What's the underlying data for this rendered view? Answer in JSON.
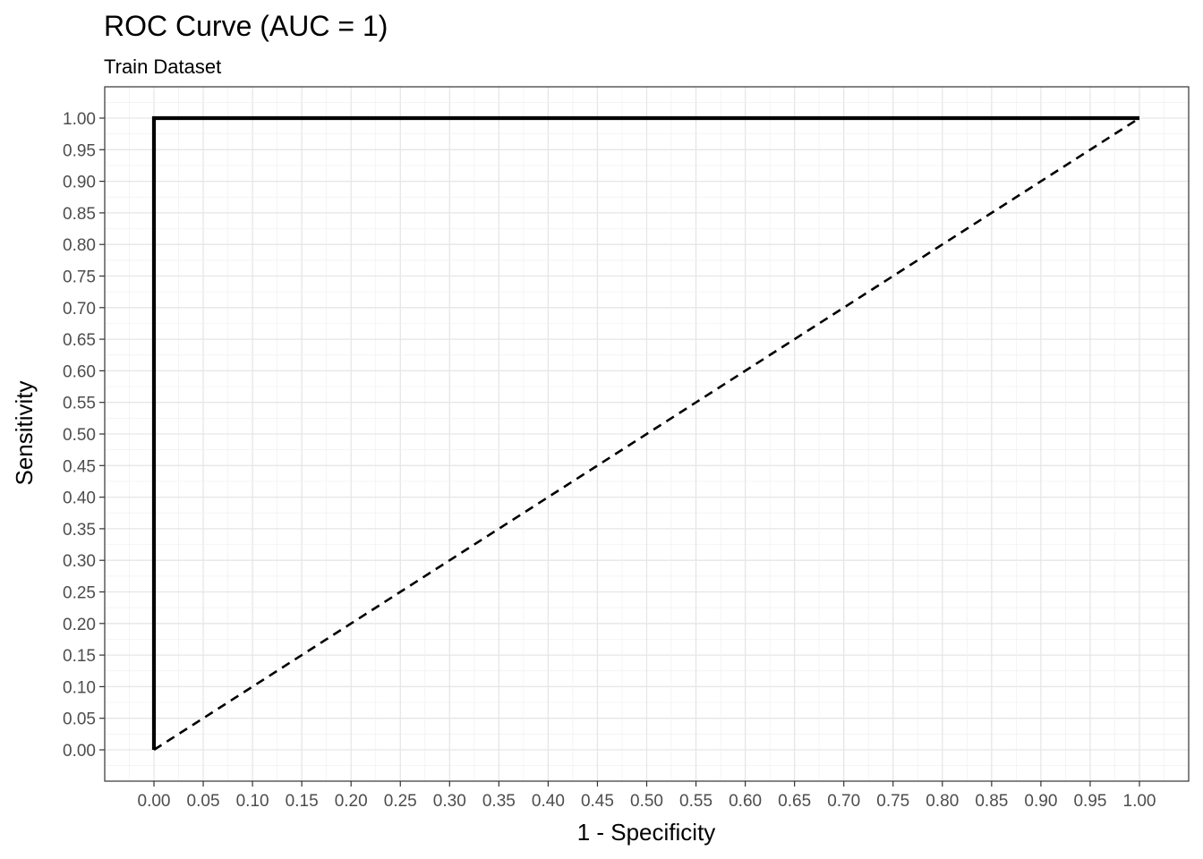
{
  "chart_data": {
    "type": "line",
    "title": "ROC Curve (AUC = 1)",
    "subtitle": "Train Dataset",
    "xlabel": "1 - Specificity",
    "ylabel": "Sensitivity",
    "xlim": [
      0,
      1
    ],
    "ylim": [
      0,
      1
    ],
    "x_ticks": [
      "0.00",
      "0.05",
      "0.10",
      "0.15",
      "0.20",
      "0.25",
      "0.30",
      "0.35",
      "0.40",
      "0.45",
      "0.50",
      "0.55",
      "0.60",
      "0.65",
      "0.70",
      "0.75",
      "0.80",
      "0.85",
      "0.90",
      "0.95",
      "1.00"
    ],
    "y_ticks": [
      "0.00",
      "0.05",
      "0.10",
      "0.15",
      "0.20",
      "0.25",
      "0.30",
      "0.35",
      "0.40",
      "0.45",
      "0.50",
      "0.55",
      "0.60",
      "0.65",
      "0.70",
      "0.75",
      "0.80",
      "0.85",
      "0.90",
      "0.95",
      "1.00"
    ],
    "grid": true,
    "legend": "none",
    "series": [
      {
        "x": [
          0,
          0,
          1
        ],
        "y": [
          0,
          1,
          1
        ],
        "style": "solid",
        "color": "#000000"
      },
      {
        "x": [
          0,
          1
        ],
        "y": [
          0,
          1
        ],
        "style": "dashed",
        "color": "#000000"
      }
    ]
  }
}
